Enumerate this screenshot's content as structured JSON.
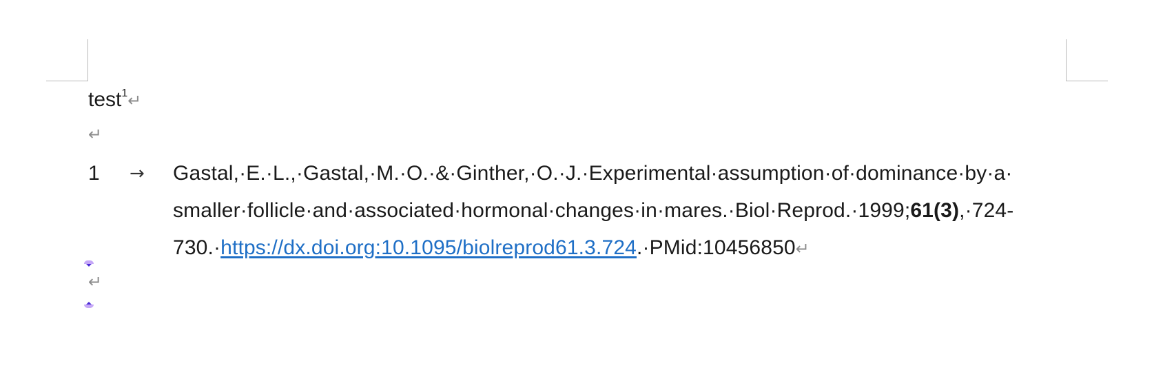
{
  "document": {
    "line1": {
      "text": "test",
      "superscript": "1"
    },
    "paragraph_mark": "↵",
    "endnote": {
      "number": "1",
      "tab_mark": "→",
      "line1": "Gastal,·E.·L.,·Gastal,·M.·O.·&·Ginther,·O.·J.·Experimental·assumption·of·dominance·by·a·",
      "line2_pre": "smaller·follicle·and·associated·hormonal·changes·in·mares.·Biol·Reprod.·1999;",
      "line2_bold": "61(3)",
      "line2_post": ",·724-",
      "line3_pre": "730.·",
      "doi_link": "https://dx.doi.org:10.1095/biolreprod61.3.724",
      "line3_post": ".·PMid:10456850"
    }
  },
  "colors": {
    "link": "#1f6fc6",
    "formatting_marks": "#8c8c8c",
    "anchor_light": "#c5a7f7",
    "anchor_dark": "#4b2bd6"
  },
  "icons": {
    "paragraph_mark": "return-arrow-icon",
    "tab_mark": "right-arrow-icon",
    "anchor": "drag-handle-icon"
  }
}
